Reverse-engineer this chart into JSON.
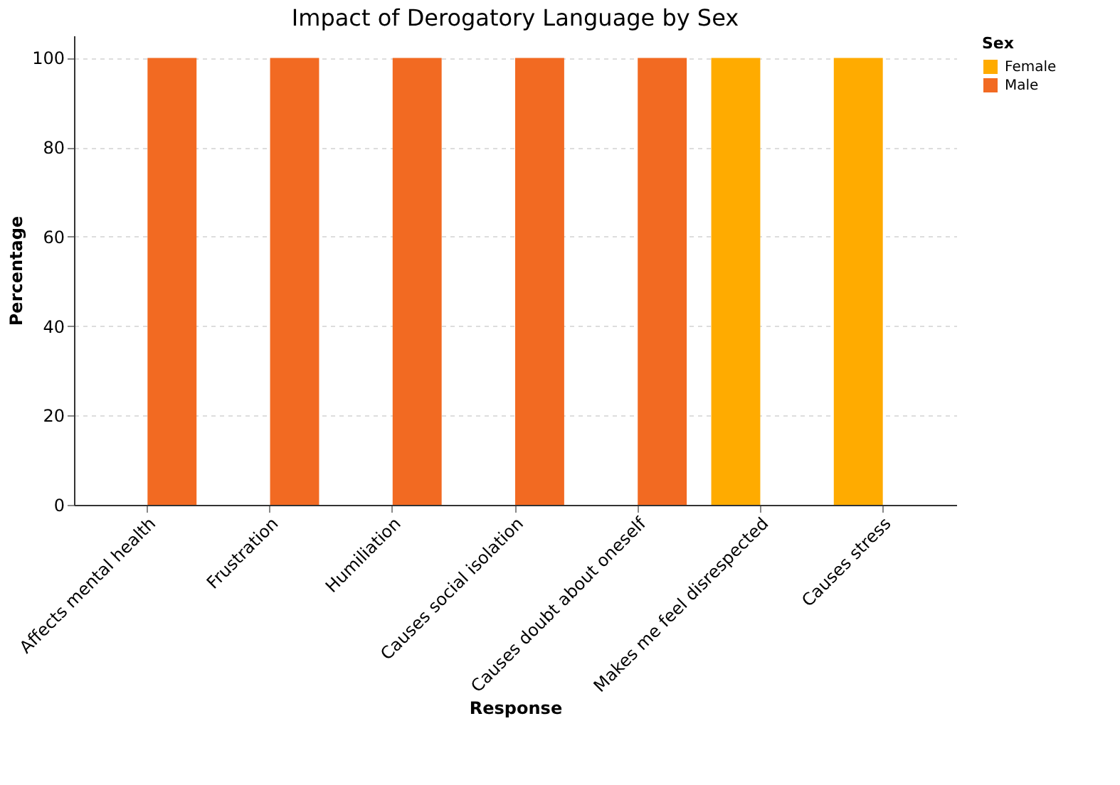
{
  "chart_data": {
    "type": "bar",
    "title": "Impact of Derogatory Language by Sex",
    "xlabel": "Response",
    "ylabel": "Percentage",
    "legend_title": "Sex",
    "categories": [
      "Affects mental health",
      "Frustration",
      "Humiliation",
      "Causes social isolation",
      "Causes doubt about oneself",
      "Makes me feel disrespected",
      "Causes stress"
    ],
    "series": [
      {
        "name": "Female",
        "color": "#ffab00",
        "values": [
          0,
          0,
          0,
          0,
          0,
          100,
          100
        ]
      },
      {
        "name": "Male",
        "color": "#f26a22",
        "values": [
          100,
          100,
          100,
          100,
          100,
          0,
          0
        ]
      }
    ],
    "ylim": [
      0,
      105
    ],
    "yticks": [
      0,
      20,
      40,
      60,
      80,
      100
    ],
    "grid": "y",
    "legend": "top right"
  }
}
